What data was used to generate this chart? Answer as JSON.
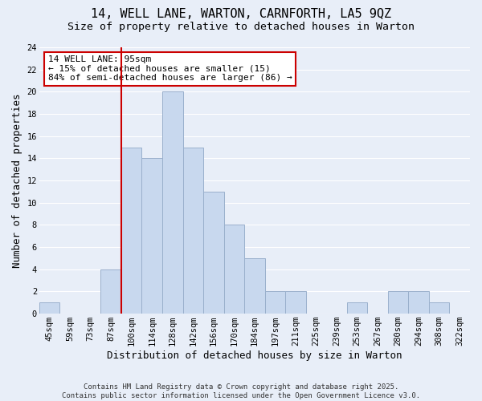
{
  "title": "14, WELL LANE, WARTON, CARNFORTH, LA5 9QZ",
  "subtitle": "Size of property relative to detached houses in Warton",
  "xlabel": "Distribution of detached houses by size in Warton",
  "ylabel": "Number of detached properties",
  "bar_color": "#c8d8ee",
  "bar_edge_color": "#9ab0cc",
  "background_color": "#e8eef8",
  "grid_color": "#ffffff",
  "bins": [
    "45sqm",
    "59sqm",
    "73sqm",
    "87sqm",
    "100sqm",
    "114sqm",
    "128sqm",
    "142sqm",
    "156sqm",
    "170sqm",
    "184sqm",
    "197sqm",
    "211sqm",
    "225sqm",
    "239sqm",
    "253sqm",
    "267sqm",
    "280sqm",
    "294sqm",
    "308sqm",
    "322sqm"
  ],
  "counts": [
    1,
    0,
    0,
    4,
    15,
    14,
    20,
    15,
    11,
    8,
    5,
    2,
    2,
    0,
    0,
    1,
    0,
    2,
    2,
    1,
    0
  ],
  "vline_index": 4,
  "vline_color": "#cc0000",
  "annotation_title": "14 WELL LANE: 95sqm",
  "annotation_line1": "← 15% of detached houses are smaller (15)",
  "annotation_line2": "84% of semi-detached houses are larger (86) →",
  "annotation_box_color": "#ffffff",
  "annotation_box_edge": "#cc0000",
  "ylim": [
    0,
    24
  ],
  "yticks": [
    0,
    2,
    4,
    6,
    8,
    10,
    12,
    14,
    16,
    18,
    20,
    22,
    24
  ],
  "footer": "Contains HM Land Registry data © Crown copyright and database right 2025.\nContains public sector information licensed under the Open Government Licence v3.0.",
  "title_fontsize": 11,
  "subtitle_fontsize": 9.5,
  "xlabel_fontsize": 9,
  "ylabel_fontsize": 9,
  "tick_fontsize": 7.5,
  "annotation_fontsize": 8,
  "footer_fontsize": 6.5
}
